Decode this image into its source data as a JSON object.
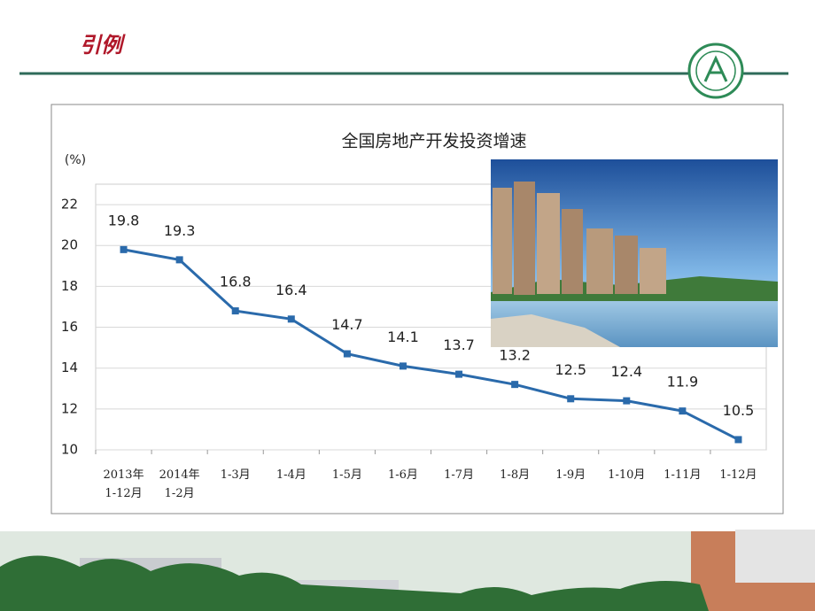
{
  "slide": {
    "title": "引例"
  },
  "chart_data": {
    "type": "line",
    "title": "全国房地产开发投资增速",
    "y_label": "(%)",
    "categories": [
      "2013年\n1-12月",
      "2014年\n1-2月",
      "1-3月",
      "1-4月",
      "1-5月",
      "1-6月",
      "1-7月",
      "1-8月",
      "1-9月",
      "1-10月",
      "1-11月",
      "1-12月"
    ],
    "series": [
      {
        "name": "全国房地产开发投资增速",
        "color": "#2a6aab",
        "values": [
          19.8,
          19.3,
          16.8,
          16.4,
          14.7,
          14.1,
          13.7,
          13.2,
          12.5,
          12.4,
          11.9,
          10.5
        ]
      }
    ],
    "ylim": [
      10,
      23
    ],
    "yticks": [
      10,
      12,
      14,
      16,
      18,
      20,
      22
    ],
    "grid": true
  }
}
